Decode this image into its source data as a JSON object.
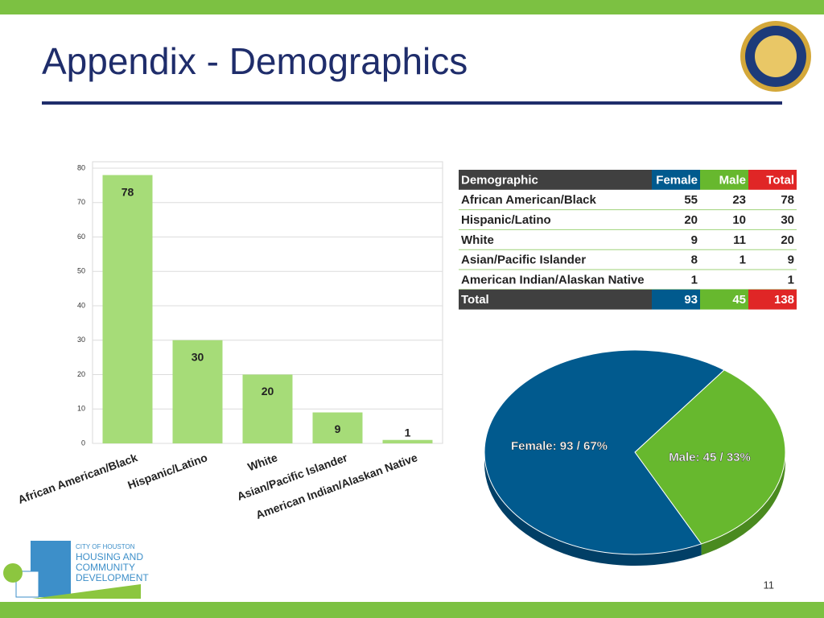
{
  "title": "Appendix - Demographics",
  "page_number": "11",
  "logo": {
    "line1": "CITY OF HOUSTON",
    "line2": "HOUSING AND",
    "line3": "COMMUNITY",
    "line4": "DEVELOPMENT"
  },
  "table": {
    "header": [
      "Demographic",
      "Female",
      "Male",
      "Total"
    ],
    "rows": [
      [
        "African American/Black",
        55,
        23,
        78
      ],
      [
        "Hispanic/Latino",
        20,
        10,
        30
      ],
      [
        "White",
        9,
        11,
        20
      ],
      [
        "Asian/Pacific Islander",
        8,
        1,
        9
      ],
      [
        "American Indian/Alaskan Native",
        1,
        null,
        1
      ],
      [
        "Total",
        93,
        45,
        138
      ]
    ]
  },
  "chart_data": [
    {
      "type": "bar",
      "categories": [
        "African American/Black",
        "Hispanic/Latino",
        "White",
        "Asian/Pacific Islander",
        "American Indian/Alaskan Native"
      ],
      "values": [
        78,
        30,
        20,
        9,
        1
      ],
      "color": "#a6dc78",
      "ylim": [
        0,
        80
      ],
      "yticks": [
        0,
        10,
        20,
        30,
        40,
        50,
        60,
        70,
        80
      ],
      "grid": true
    },
    {
      "type": "pie",
      "values": [
        93,
        45
      ],
      "value_labels": [
        "Female: 93 / 67%",
        "Male: 45 / 33%"
      ],
      "colors": [
        "#015a8e",
        "#67b82e"
      ]
    }
  ]
}
